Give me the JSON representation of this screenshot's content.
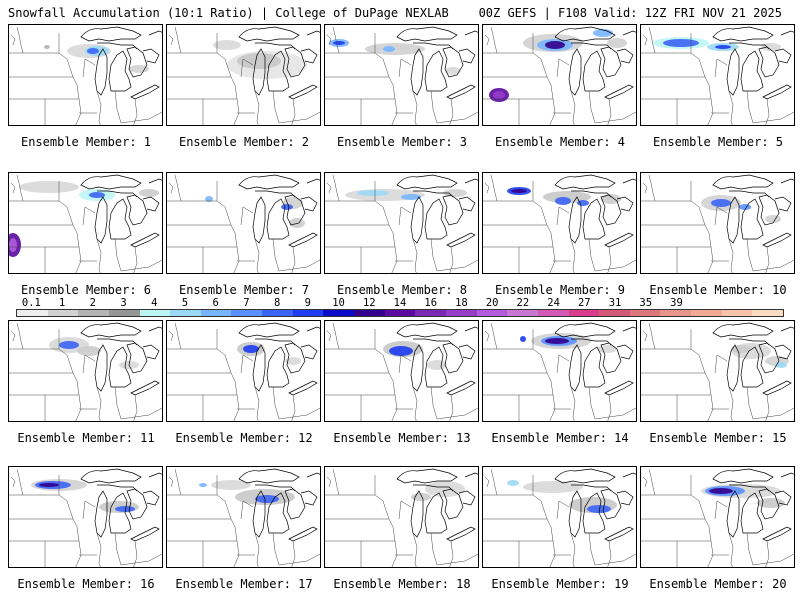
{
  "header": {
    "title": "Snowfall Accumulation (10:1 Ratio) | College of DuPage NEXLAB",
    "run_info": "00Z GEFS | F108 Valid: 12Z FRI NOV 21 2025"
  },
  "panels": [
    {
      "label": "Ensemble Member: 1"
    },
    {
      "label": "Ensemble Member: 2"
    },
    {
      "label": "Ensemble Member: 3"
    },
    {
      "label": "Ensemble Member: 4"
    },
    {
      "label": "Ensemble Member: 5"
    },
    {
      "label": "Ensemble Member: 6"
    },
    {
      "label": "Ensemble Member: 7"
    },
    {
      "label": "Ensemble Member: 8"
    },
    {
      "label": "Ensemble Member: 9"
    },
    {
      "label": "Ensemble Member: 10"
    },
    {
      "label": "Ensemble Member: 11"
    },
    {
      "label": "Ensemble Member: 12"
    },
    {
      "label": "Ensemble Member: 13"
    },
    {
      "label": "Ensemble Member: 14"
    },
    {
      "label": "Ensemble Member: 15"
    },
    {
      "label": "Ensemble Member: 16"
    },
    {
      "label": "Ensemble Member: 17"
    },
    {
      "label": "Ensemble Member: 18"
    },
    {
      "label": "Ensemble Member: 19"
    },
    {
      "label": "Ensemble Member: 20"
    }
  ],
  "colorbar": {
    "tick_labels": [
      "0.1",
      "1",
      "2",
      "3",
      "4",
      "5",
      "6",
      "7",
      "8",
      "9",
      "10",
      "12",
      "14",
      "16",
      "18",
      "20",
      "22",
      "24",
      "27",
      "31",
      "35",
      "39"
    ],
    "colors": [
      "#eeeeee",
      "#d2d2d2",
      "#b4b4b4",
      "#969696",
      "#bdf5f5",
      "#9cd9f5",
      "#78b5ff",
      "#5a91ff",
      "#3c64f5",
      "#1e3cf0",
      "#0a0ac8",
      "#32008c",
      "#5a0aa0",
      "#7828b4",
      "#963cc8",
      "#b45adc",
      "#c878d2",
      "#d25ab4",
      "#dc3c8c",
      "#d25a78",
      "#dc787d",
      "#e6968c",
      "#f0aa96",
      "#f5c3aa",
      "#fadcc3"
    ]
  }
}
